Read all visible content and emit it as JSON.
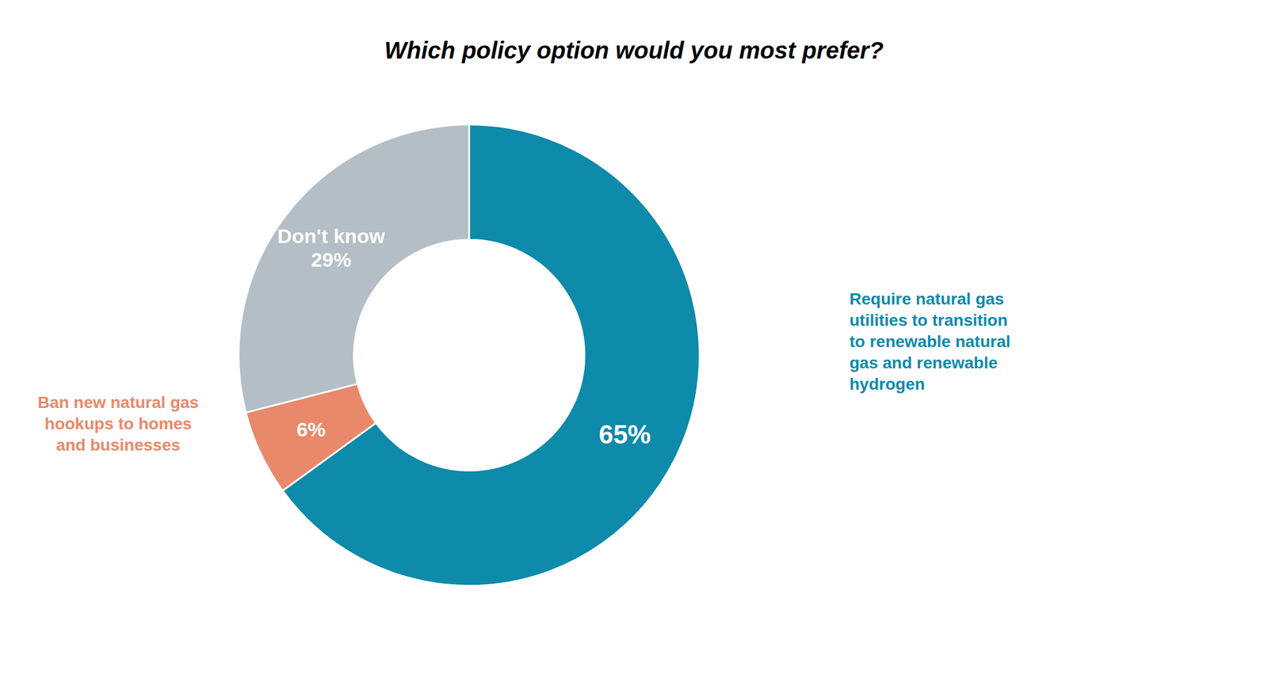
{
  "chart_data": {
    "type": "donut",
    "title": "Which policy option would you most prefer?",
    "values": [
      65,
      6,
      29
    ],
    "colors": [
      "#0e8aaa",
      "#e8896a",
      "#b3bec6"
    ],
    "data_labels": true,
    "value_labels": [
      "65%",
      "6%",
      "Don't know\n29%"
    ],
    "annotations": [
      {
        "text": "Require natural gas\nutilities to transition\nto renewable natural\ngas and renewable\nhydrogen",
        "color": "#0e8aaa"
      },
      {
        "text": "Ban new natural gas\nhookups to homes\nand businesses",
        "color": "#e8896a"
      }
    ]
  }
}
